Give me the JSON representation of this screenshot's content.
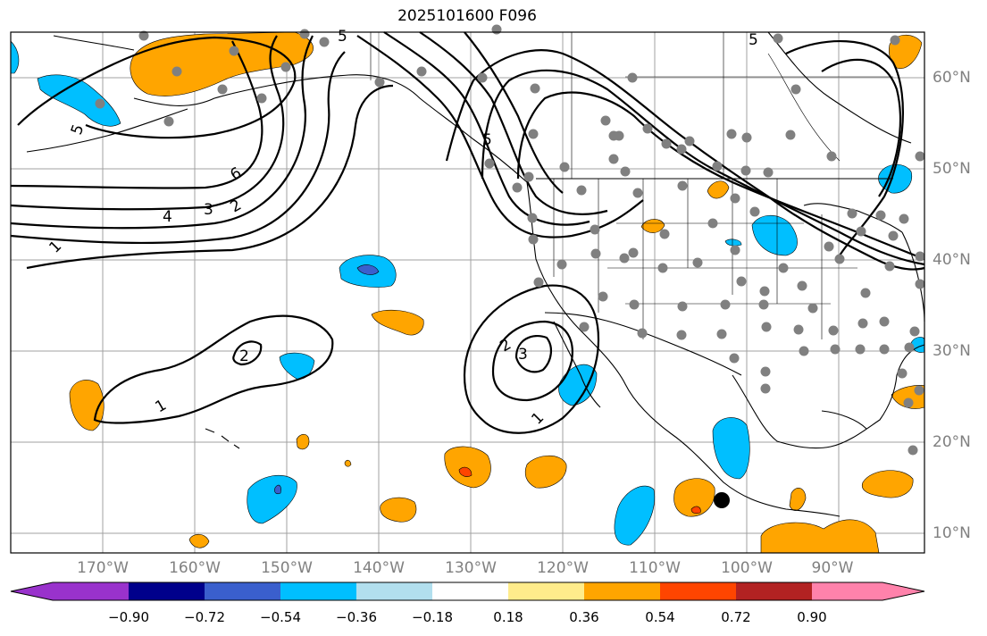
{
  "title": "2025101600 F096",
  "lon_labels": [
    "170°W",
    "160°W",
    "150°W",
    "140°W",
    "130°W",
    "120°W",
    "110°W",
    "100°W",
    "90°W"
  ],
  "lat_labels": [
    "60°N",
    "50°N",
    "40°N",
    "30°N",
    "20°N",
    "10°N"
  ],
  "contour_labels": [
    "5",
    "5",
    "5",
    "6",
    "4",
    "3",
    "2",
    "1",
    "2",
    "2",
    "3",
    "1",
    "1",
    "5"
  ],
  "colorbar": {
    "tick_labels": [
      "−0.90",
      "−0.72",
      "−0.54",
      "−0.36",
      "−0.18",
      "0.18",
      "0.36",
      "0.54",
      "0.72",
      "0.90"
    ],
    "colors": [
      "#9932cc",
      "#00008b",
      "#3a5fcd",
      "#00bfff",
      "#b2dfee",
      "#ffffff",
      "#ffec8b",
      "#ffa500",
      "#ff4500",
      "#b22222",
      "#ff82ab"
    ]
  },
  "colors": {
    "orange": "#ffa500",
    "deep_sky_blue": "#00bfff",
    "royal_blue": "#3a5fcd",
    "red_orange": "#ff4500",
    "grid": "#a0a0a0",
    "station_dot": "#808080",
    "marker": "#000000"
  }
}
